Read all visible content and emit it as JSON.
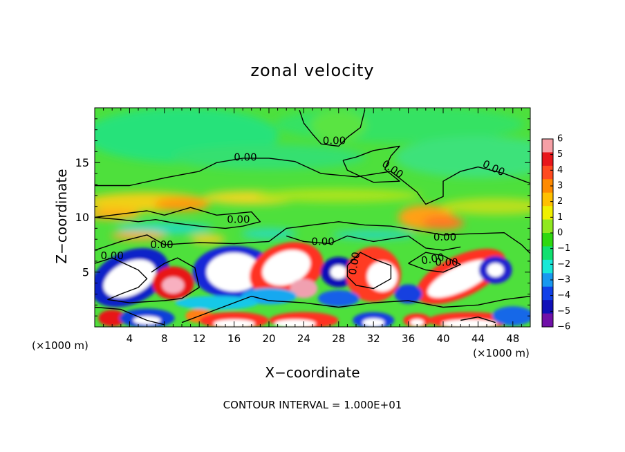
{
  "chart_data": {
    "type": "heatmap",
    "title": "zonal velocity",
    "xlabel": "X−coordinate",
    "ylabel": "Z−coordinate",
    "x_unit_left": "(×1000 m)",
    "x_unit_right": "(×1000 m)",
    "footer": "CONTOUR INTERVAL = 1.000E+01",
    "xlim": [
      0,
      50
    ],
    "ylim": [
      0,
      20
    ],
    "x_ticks": [
      "4",
      "8",
      "12",
      "16",
      "20",
      "24",
      "28",
      "32",
      "36",
      "40",
      "44",
      "48"
    ],
    "y_ticks": [
      "5",
      "10",
      "15"
    ],
    "colorbar": {
      "labels": [
        "6",
        "5",
        "4",
        "3",
        "2",
        "1",
        "0",
        "−1",
        "−2",
        "−3",
        "−4",
        "−5",
        "−6"
      ],
      "colors": [
        "#f6a0a6",
        "#e8161b",
        "#ff4a20",
        "#ff8a00",
        "#ffc000",
        "#f0f000",
        "#90e820",
        "#2ed810",
        "#10e070",
        "#18e8d8",
        "#1898f0",
        "#1040e8",
        "#1010b8",
        "#7010a8"
      ]
    },
    "contour_labels": [
      {
        "text": "0.00",
        "x": 27.5,
        "z": 17.0,
        "angle": 0
      },
      {
        "text": "0.00",
        "x": 17.3,
        "z": 15.5,
        "angle": 0
      },
      {
        "text": "0.00",
        "x": 34.2,
        "z": 14.4,
        "angle": 35
      },
      {
        "text": "0.00",
        "x": 45.8,
        "z": 14.5,
        "angle": 25
      },
      {
        "text": "0.00",
        "x": 16.5,
        "z": 9.8,
        "angle": 0
      },
      {
        "text": "0.00",
        "x": 26.2,
        "z": 7.8,
        "angle": 0
      },
      {
        "text": "0.00",
        "x": 7.7,
        "z": 7.5,
        "angle": 0
      },
      {
        "text": "0.00",
        "x": 2.0,
        "z": 6.5,
        "angle": 0
      },
      {
        "text": "0.00",
        "x": 29.8,
        "z": 5.8,
        "angle": -80
      },
      {
        "text": "0.00",
        "x": 40.2,
        "z": 8.2,
        "angle": 0
      },
      {
        "text": "0.00",
        "x": 38.8,
        "z": 6.2,
        "angle": -10
      },
      {
        "text": "0.00",
        "x": 40.4,
        "z": 5.9,
        "angle": 0
      }
    ]
  }
}
